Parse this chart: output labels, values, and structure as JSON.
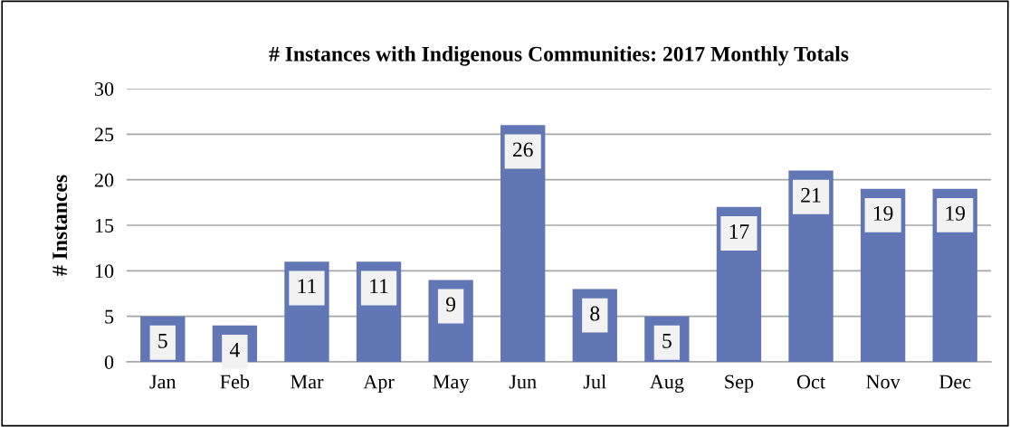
{
  "chart_data": {
    "type": "bar",
    "title": "# Instances with Indigenous Communities: 2017 Monthly Totals",
    "ylabel": "# Instances",
    "categories": [
      "Jan",
      "Feb",
      "Mar",
      "Apr",
      "May",
      "Jun",
      "Jul",
      "Aug",
      "Sep",
      "Oct",
      "Nov",
      "Dec"
    ],
    "values": [
      5,
      4,
      11,
      11,
      9,
      26,
      8,
      5,
      17,
      21,
      19,
      19
    ],
    "color": "#6177b5",
    "ylim": [
      0,
      30
    ],
    "yticks": [
      0,
      5,
      10,
      15,
      20,
      25,
      30
    ],
    "grid": "y",
    "data_labels": true
  }
}
